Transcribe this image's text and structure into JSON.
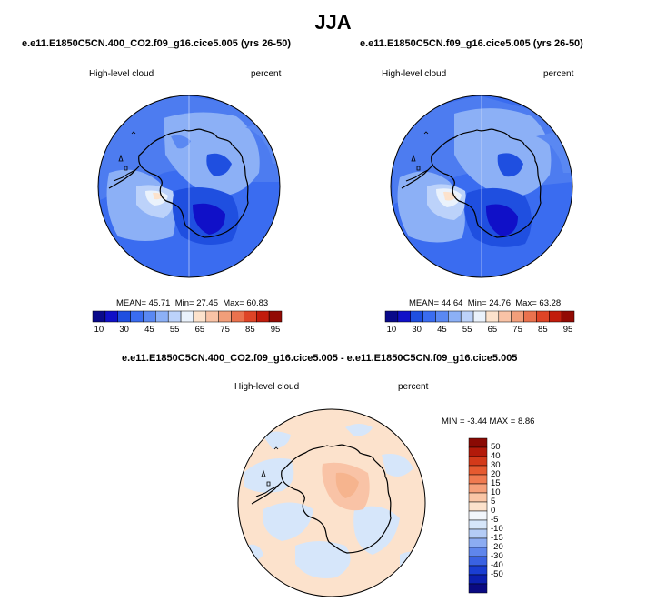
{
  "page_title": "JJA",
  "panels": [
    {
      "case_title": "e.e11.E1850C5CN.400_CO2.f09_g16.cice5.005 (yrs 26-50)",
      "field": "High-level cloud",
      "units": "percent",
      "stats": {
        "mean_label": "MEAN=",
        "mean": "45.71",
        "min_label": "Min=",
        "min": "27.45",
        "max_label": "Max=",
        "max": "60.83"
      }
    },
    {
      "case_title": "e.e11.E1850C5CN.f09_g16.cice5.005 (yrs 26-50)",
      "field": "High-level cloud",
      "units": "percent",
      "stats": {
        "mean_label": "MEAN=",
        "mean": "44.64",
        "min_label": "Min=",
        "min": "24.76",
        "max_label": "Max=",
        "max": "63.28"
      }
    }
  ],
  "colorbar_abs": {
    "colors": [
      "#0a0a8a",
      "#1010c8",
      "#1f4fe0",
      "#3a6cf0",
      "#5a88f2",
      "#8cb0f6",
      "#bcd2fa",
      "#eaf2fc",
      "#fce2cc",
      "#f9c3a6",
      "#f29e7a",
      "#ea724e",
      "#de4426",
      "#c21c0c",
      "#920a04"
    ],
    "labels": [
      "10",
      "30",
      "45",
      "55",
      "65",
      "75",
      "85",
      "95"
    ]
  },
  "diff": {
    "title": "e.e11.E1850C5CN.400_CO2.f09_g16.cice5.005 - e.e11.E1850C5CN.f09_g16.cice5.005",
    "field": "High-level cloud",
    "units": "percent",
    "min_label": "MIN =",
    "min": "-3.44",
    "max_label": "MAX =",
    "max": "8.86"
  },
  "colorbar_diff": {
    "colors": [
      "#8a0a04",
      "#b31a0a",
      "#d33a1a",
      "#e65a30",
      "#f07a50",
      "#f6a07a",
      "#fac6a6",
      "#fce2cc",
      "#f2f6fc",
      "#d6e6fa",
      "#b4ccf6",
      "#8cacf2",
      "#5f86ec",
      "#3a62e2",
      "#1a3ed2",
      "#0c20b0",
      "#0a0a82"
    ],
    "labels": [
      "50",
      "40",
      "30",
      "20",
      "15",
      "10",
      "5",
      "0",
      "-5",
      "-10",
      "-15",
      "-20",
      "-30",
      "-40",
      "-50"
    ]
  }
}
